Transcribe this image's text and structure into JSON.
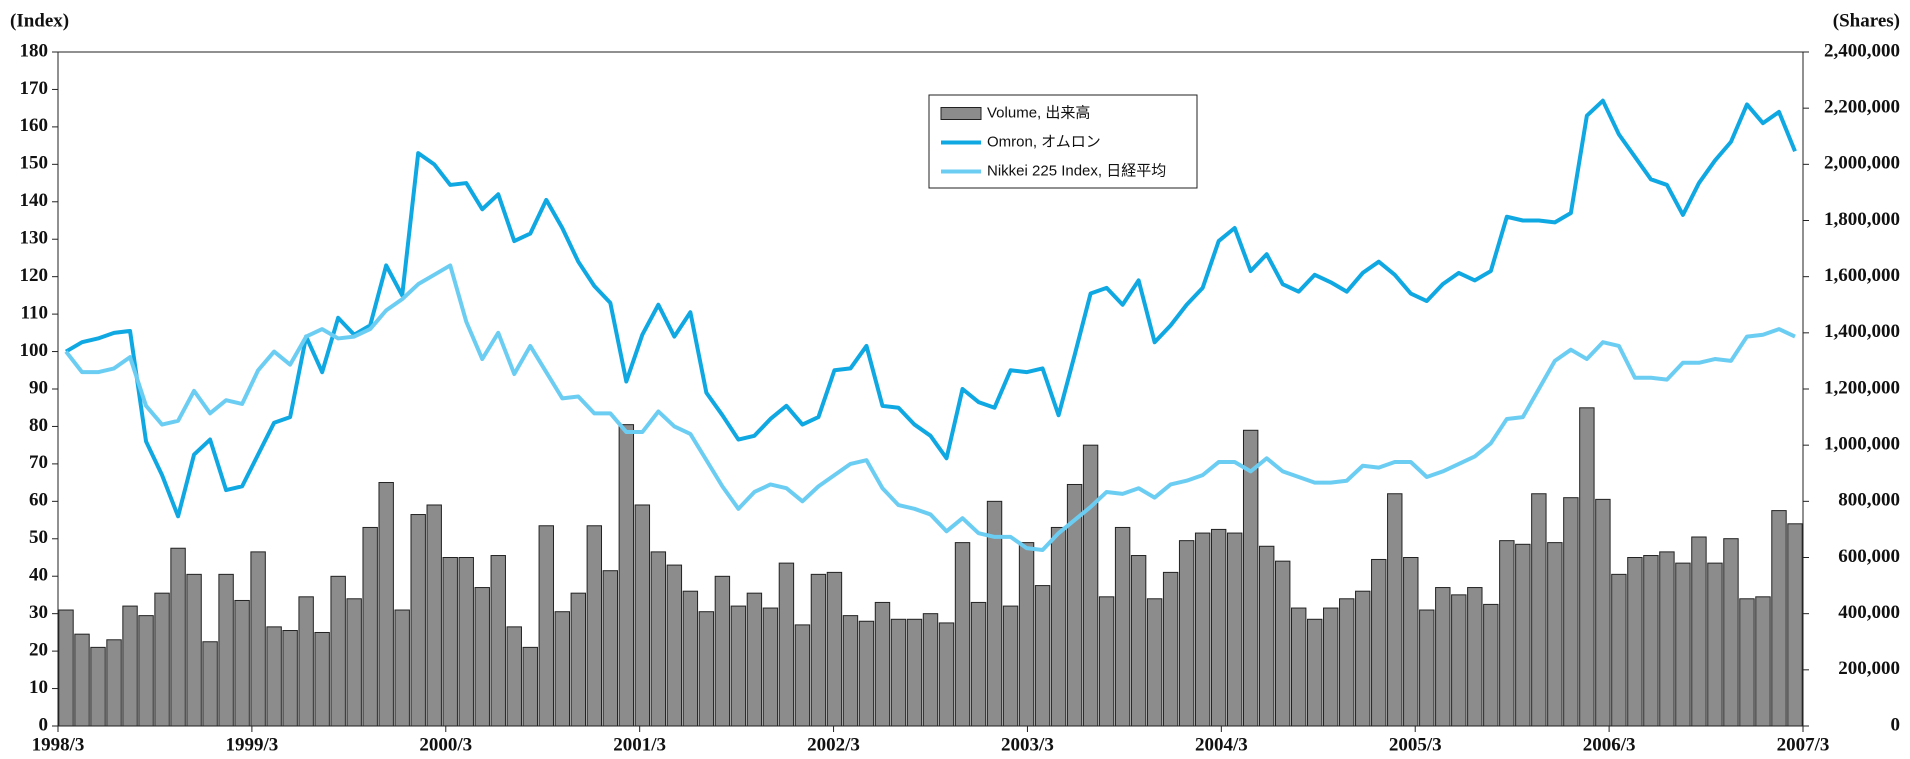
{
  "chart_data": {
    "type": "bar",
    "y_label": "(Index)",
    "y2_label": "(Shares)",
    "categories": [
      "1998/3",
      null,
      null,
      null,
      null,
      null,
      null,
      null,
      null,
      null,
      null,
      null,
      "1999/3",
      null,
      null,
      null,
      null,
      null,
      null,
      null,
      null,
      null,
      null,
      null,
      "2000/3",
      null,
      null,
      null,
      null,
      null,
      null,
      null,
      null,
      null,
      null,
      null,
      "2001/3",
      null,
      null,
      null,
      null,
      null,
      null,
      null,
      null,
      null,
      null,
      null,
      "2002/3",
      null,
      null,
      null,
      null,
      null,
      null,
      null,
      null,
      null,
      null,
      null,
      "2003/3",
      null,
      null,
      null,
      null,
      null,
      null,
      null,
      null,
      null,
      null,
      null,
      "2004/3",
      null,
      null,
      null,
      null,
      null,
      null,
      null,
      null,
      null,
      null,
      null,
      "2005/3",
      null,
      null,
      null,
      null,
      null,
      null,
      null,
      null,
      null,
      null,
      null,
      "2006/3",
      null,
      null,
      null,
      null,
      null,
      null,
      null,
      null,
      null,
      null,
      null,
      "2007/3"
    ],
    "ylim": [
      0,
      180
    ],
    "yticks": [
      0,
      10,
      20,
      30,
      40,
      50,
      60,
      70,
      80,
      90,
      100,
      110,
      120,
      130,
      140,
      150,
      160,
      170,
      180
    ],
    "y2lim": [
      0,
      2400000
    ],
    "y2ticks": [
      {
        "value": 0,
        "label": "0"
      },
      {
        "value": 200000,
        "label": "200,000"
      },
      {
        "value": 400000,
        "label": "400,000"
      },
      {
        "value": 600000,
        "label": "600,000"
      },
      {
        "value": 800000,
        "label": "800,000"
      },
      {
        "value": 1000000,
        "label": "1,000,000"
      },
      {
        "value": 1200000,
        "label": "1,200,000"
      },
      {
        "value": 1400000,
        "label": "1,400,000"
      },
      {
        "value": 1600000,
        "label": "1,600,000"
      },
      {
        "value": 1800000,
        "label": "1,800,000"
      },
      {
        "value": 2000000,
        "label": "2,000,000"
      },
      {
        "value": 2200000,
        "label": "2,200,000"
      },
      {
        "value": 2400000,
        "label": "2,400,000"
      }
    ],
    "legend": "top-center",
    "series": [
      {
        "name": "Volume, 出来高",
        "kind": "bar",
        "axis": "y2",
        "color": "#8c8c8c",
        "values": [
          413000,
          327000,
          280000,
          307000,
          427000,
          393000,
          473000,
          633000,
          540000,
          300000,
          540000,
          447000,
          620000,
          353000,
          340000,
          460000,
          333000,
          533000,
          453000,
          707000,
          867000,
          413000,
          753000,
          787000,
          600000,
          600000,
          493000,
          607000,
          353000,
          280000,
          713000,
          407000,
          473000,
          713000,
          553000,
          1073000,
          787000,
          620000,
          573000,
          480000,
          407000,
          533000,
          427000,
          473000,
          420000,
          580000,
          360000,
          540000,
          547000,
          393000,
          373000,
          440000,
          380000,
          380000,
          400000,
          367000,
          653000,
          440000,
          800000,
          427000,
          653000,
          500000,
          707000,
          860000,
          1000000,
          460000,
          707000,
          607000,
          453000,
          547000,
          660000,
          687000,
          700000,
          687000,
          1053000,
          640000,
          587000,
          420000,
          380000,
          420000,
          453000,
          480000,
          593000,
          827000,
          600000,
          413000,
          493000,
          467000,
          493000,
          433000,
          660000,
          647000,
          827000,
          653000,
          813000,
          1133000,
          807000,
          540000,
          600000,
          607000,
          620000,
          580000,
          673000,
          580000,
          667000,
          453000,
          460000,
          767000,
          720000
        ]
      },
      {
        "name": "Omron, オムロン",
        "kind": "line",
        "color": "#0fa8e2",
        "values": [
          100,
          102.5,
          103.5,
          105,
          105.5,
          76,
          67,
          56,
          72.5,
          76.5,
          63,
          64,
          72.5,
          81,
          82.5,
          104,
          94.5,
          109,
          104.5,
          107,
          123,
          115,
          153,
          150,
          144.5,
          145,
          138,
          142,
          129.5,
          131.5,
          140.5,
          133,
          124,
          117.5,
          113,
          92,
          104.5,
          112.5,
          104,
          110.5,
          89,
          83,
          76.5,
          77.5,
          82,
          85.5,
          80.5,
          82.5,
          95,
          95.5,
          101.5,
          85.5,
          85,
          80.5,
          77.5,
          71.5,
          90,
          86.5,
          85,
          95,
          94.5,
          95.5,
          83,
          99,
          115.5,
          117,
          112.5,
          119,
          102.5,
          107,
          112.5,
          117,
          129.5,
          133,
          121.5,
          126,
          118,
          116,
          120.5,
          118.5,
          116,
          121,
          124,
          120.5,
          115.5,
          113.5,
          118,
          121,
          119,
          121.5,
          136,
          135,
          135,
          134.5,
          137,
          163,
          167,
          158,
          152,
          146,
          144.5,
          136.5,
          145,
          151,
          156,
          166,
          161,
          164,
          153.5
        ]
      },
      {
        "name": "Nikkei 225 Index, 日経平均",
        "kind": "line",
        "color": "#6ccdf3",
        "values": [
          100,
          94.5,
          94.5,
          95.5,
          98.5,
          85.5,
          80.5,
          81.5,
          89.5,
          83.5,
          87,
          86,
          95,
          100,
          96.5,
          104,
          106,
          103.5,
          104,
          106,
          111,
          114,
          118,
          120.5,
          123,
          108,
          98,
          105,
          94,
          101.5,
          94.5,
          87.5,
          88,
          83.5,
          83.5,
          78.5,
          78.5,
          84,
          80,
          78,
          71,
          64,
          58,
          62.5,
          64.5,
          63.5,
          60,
          64,
          67,
          70,
          71,
          63.5,
          59,
          58,
          56.5,
          52,
          55.5,
          51.5,
          50.5,
          50.5,
          47.5,
          47,
          51.5,
          55,
          58.5,
          62.5,
          62,
          63.5,
          61,
          64.5,
          65.5,
          67,
          70.5,
          70.5,
          68,
          71.5,
          68,
          66.5,
          65,
          65,
          65.5,
          69.5,
          69,
          70.5,
          70.5,
          66.5,
          68,
          70,
          72,
          75.5,
          82,
          82.5,
          90,
          97.5,
          100.5,
          98,
          102.5,
          101.5,
          93,
          93,
          92.5,
          97,
          97,
          98,
          97.5,
          104,
          104.5,
          106,
          104
        ]
      }
    ]
  }
}
